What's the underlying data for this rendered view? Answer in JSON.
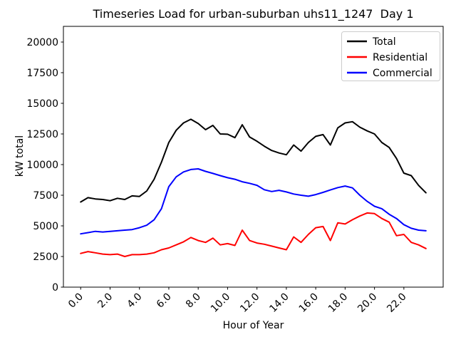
{
  "title": "Timeseries Load for urban-suburban uhs11_1247  Day 1",
  "chart_data": {
    "type": "line",
    "title": "Timeseries Load for urban-suburban uhs11_1247  Day 1",
    "xlabel": "Hour of Year",
    "ylabel": "kW total",
    "grid": false,
    "legend_position": "upper right",
    "xlim": [
      -1.175,
      24.675
    ],
    "ylim": [
      0,
      21280
    ],
    "xticks": {
      "values": [
        0,
        2,
        4,
        6,
        8,
        10,
        12,
        14,
        16,
        18,
        20,
        22
      ],
      "labels": [
        "0.0",
        "2.0",
        "4.0",
        "6.0",
        "8.0",
        "10.0",
        "12.0",
        "14.0",
        "16.0",
        "18.0",
        "20.0",
        "22.0"
      ],
      "rotation": 45
    },
    "yticks": {
      "values": [
        0,
        2500,
        5000,
        7500,
        10000,
        12500,
        15000,
        17500,
        20000
      ],
      "labels": [
        "0",
        "2500",
        "5000",
        "7500",
        "10000",
        "12500",
        "15000",
        "17500",
        "20000"
      ]
    },
    "x": [
      0,
      0.5,
      1,
      1.5,
      2,
      2.5,
      3,
      3.5,
      4,
      4.5,
      5,
      5.5,
      6,
      6.5,
      7,
      7.5,
      8,
      8.5,
      9,
      9.5,
      10,
      10.5,
      11,
      11.5,
      12,
      12.5,
      13,
      13.5,
      14,
      14.5,
      15,
      15.5,
      16,
      16.5,
      17,
      17.5,
      18,
      18.5,
      19,
      19.5,
      20,
      20.5,
      21,
      21.5,
      22,
      22.5,
      23,
      23.5
    ],
    "series": [
      {
        "name": "Total",
        "color": "#000000",
        "values": [
          6950,
          7300,
          7200,
          7150,
          7050,
          7250,
          7150,
          7450,
          7400,
          7850,
          8800,
          10200,
          11800,
          12800,
          13400,
          13700,
          13350,
          12850,
          13200,
          12500,
          12480,
          12200,
          13250,
          12250,
          11900,
          11500,
          11150,
          10950,
          10800,
          11600,
          11100,
          11800,
          12300,
          12450,
          11600,
          13000,
          13400,
          13500,
          13050,
          12750,
          12500,
          11800,
          11400,
          10500,
          9300,
          9100,
          8300,
          7700
        ]
      },
      {
        "name": "Residential",
        "color": "#ff0000",
        "values": [
          2750,
          2900,
          2800,
          2700,
          2650,
          2700,
          2500,
          2650,
          2650,
          2700,
          2800,
          3050,
          3200,
          3450,
          3700,
          4050,
          3800,
          3650,
          4000,
          3450,
          3550,
          3400,
          4650,
          3800,
          3600,
          3500,
          3350,
          3200,
          3050,
          4100,
          3650,
          4300,
          4850,
          4950,
          3800,
          5250,
          5150,
          5500,
          5800,
          6050,
          6000,
          5600,
          5300,
          4200,
          4300,
          3650,
          3450,
          3150
        ]
      },
      {
        "name": "Commercial",
        "color": "#0000ff",
        "values": [
          4350,
          4450,
          4550,
          4500,
          4550,
          4600,
          4650,
          4700,
          4850,
          5050,
          5500,
          6400,
          8200,
          9000,
          9400,
          9600,
          9650,
          9450,
          9280,
          9100,
          8930,
          8800,
          8600,
          8470,
          8310,
          7950,
          7800,
          7900,
          7770,
          7600,
          7500,
          7420,
          7550,
          7730,
          7930,
          8120,
          8250,
          8100,
          7500,
          7000,
          6600,
          6400,
          5950,
          5600,
          5100,
          4800,
          4650,
          4600
        ]
      }
    ]
  }
}
